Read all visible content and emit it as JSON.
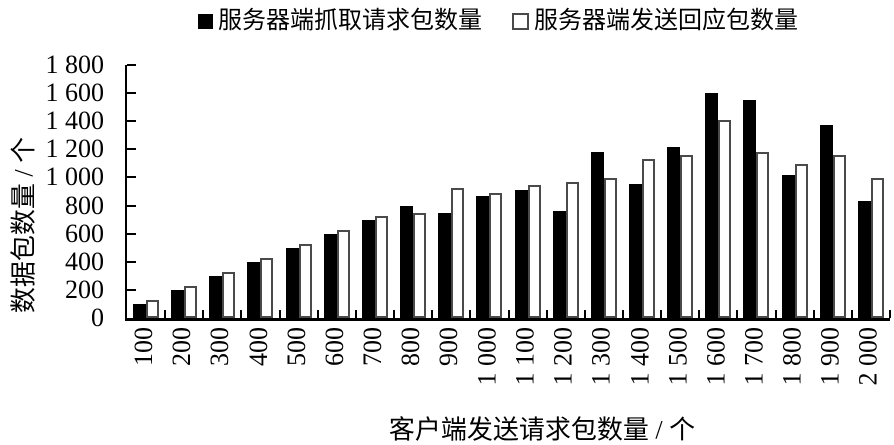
{
  "chart_data": {
    "type": "bar",
    "title": "",
    "categories": [
      "100",
      "200",
      "300",
      "400",
      "500",
      "600",
      "700",
      "800",
      "900",
      "1 000",
      "1 100",
      "1 200",
      "1 300",
      "1 400",
      "1 500",
      "1 600",
      "1 700",
      "1 800",
      "1 900",
      "2 000"
    ],
    "series": [
      {
        "name": "服务器端抓取请求包数量",
        "swatch": "filled-black-square",
        "values": [
          100,
          200,
          300,
          400,
          500,
          600,
          700,
          800,
          750,
          870,
          910,
          760,
          1180,
          950,
          1220,
          1600,
          1550,
          1020,
          1370,
          830
        ]
      },
      {
        "name": "服务器端发送回应包数量",
        "swatch": "open-white-square",
        "values": [
          100,
          200,
          300,
          400,
          500,
          600,
          700,
          720,
          900,
          860,
          920,
          940,
          970,
          1100,
          1130,
          1380,
          1150,
          1070,
          1130,
          970
        ]
      }
    ],
    "xlabel": "客户端发送请求包数量 / 个",
    "ylabel": "数据包数量 / 个",
    "ylim": [
      0,
      1800
    ],
    "ytick_step": 200,
    "ytick_labels": [
      "0",
      "200",
      "400",
      "600",
      "800",
      "1 000",
      "1 200",
      "1 400",
      "1 600",
      "1 800"
    ],
    "legend_position": "top",
    "grid": false,
    "colors": {
      "series1_fill": "#000000",
      "series2_fill": "#ffffff",
      "series2_border": "#4a4a4a",
      "axis": "#000000",
      "background": "#ffffff"
    }
  }
}
